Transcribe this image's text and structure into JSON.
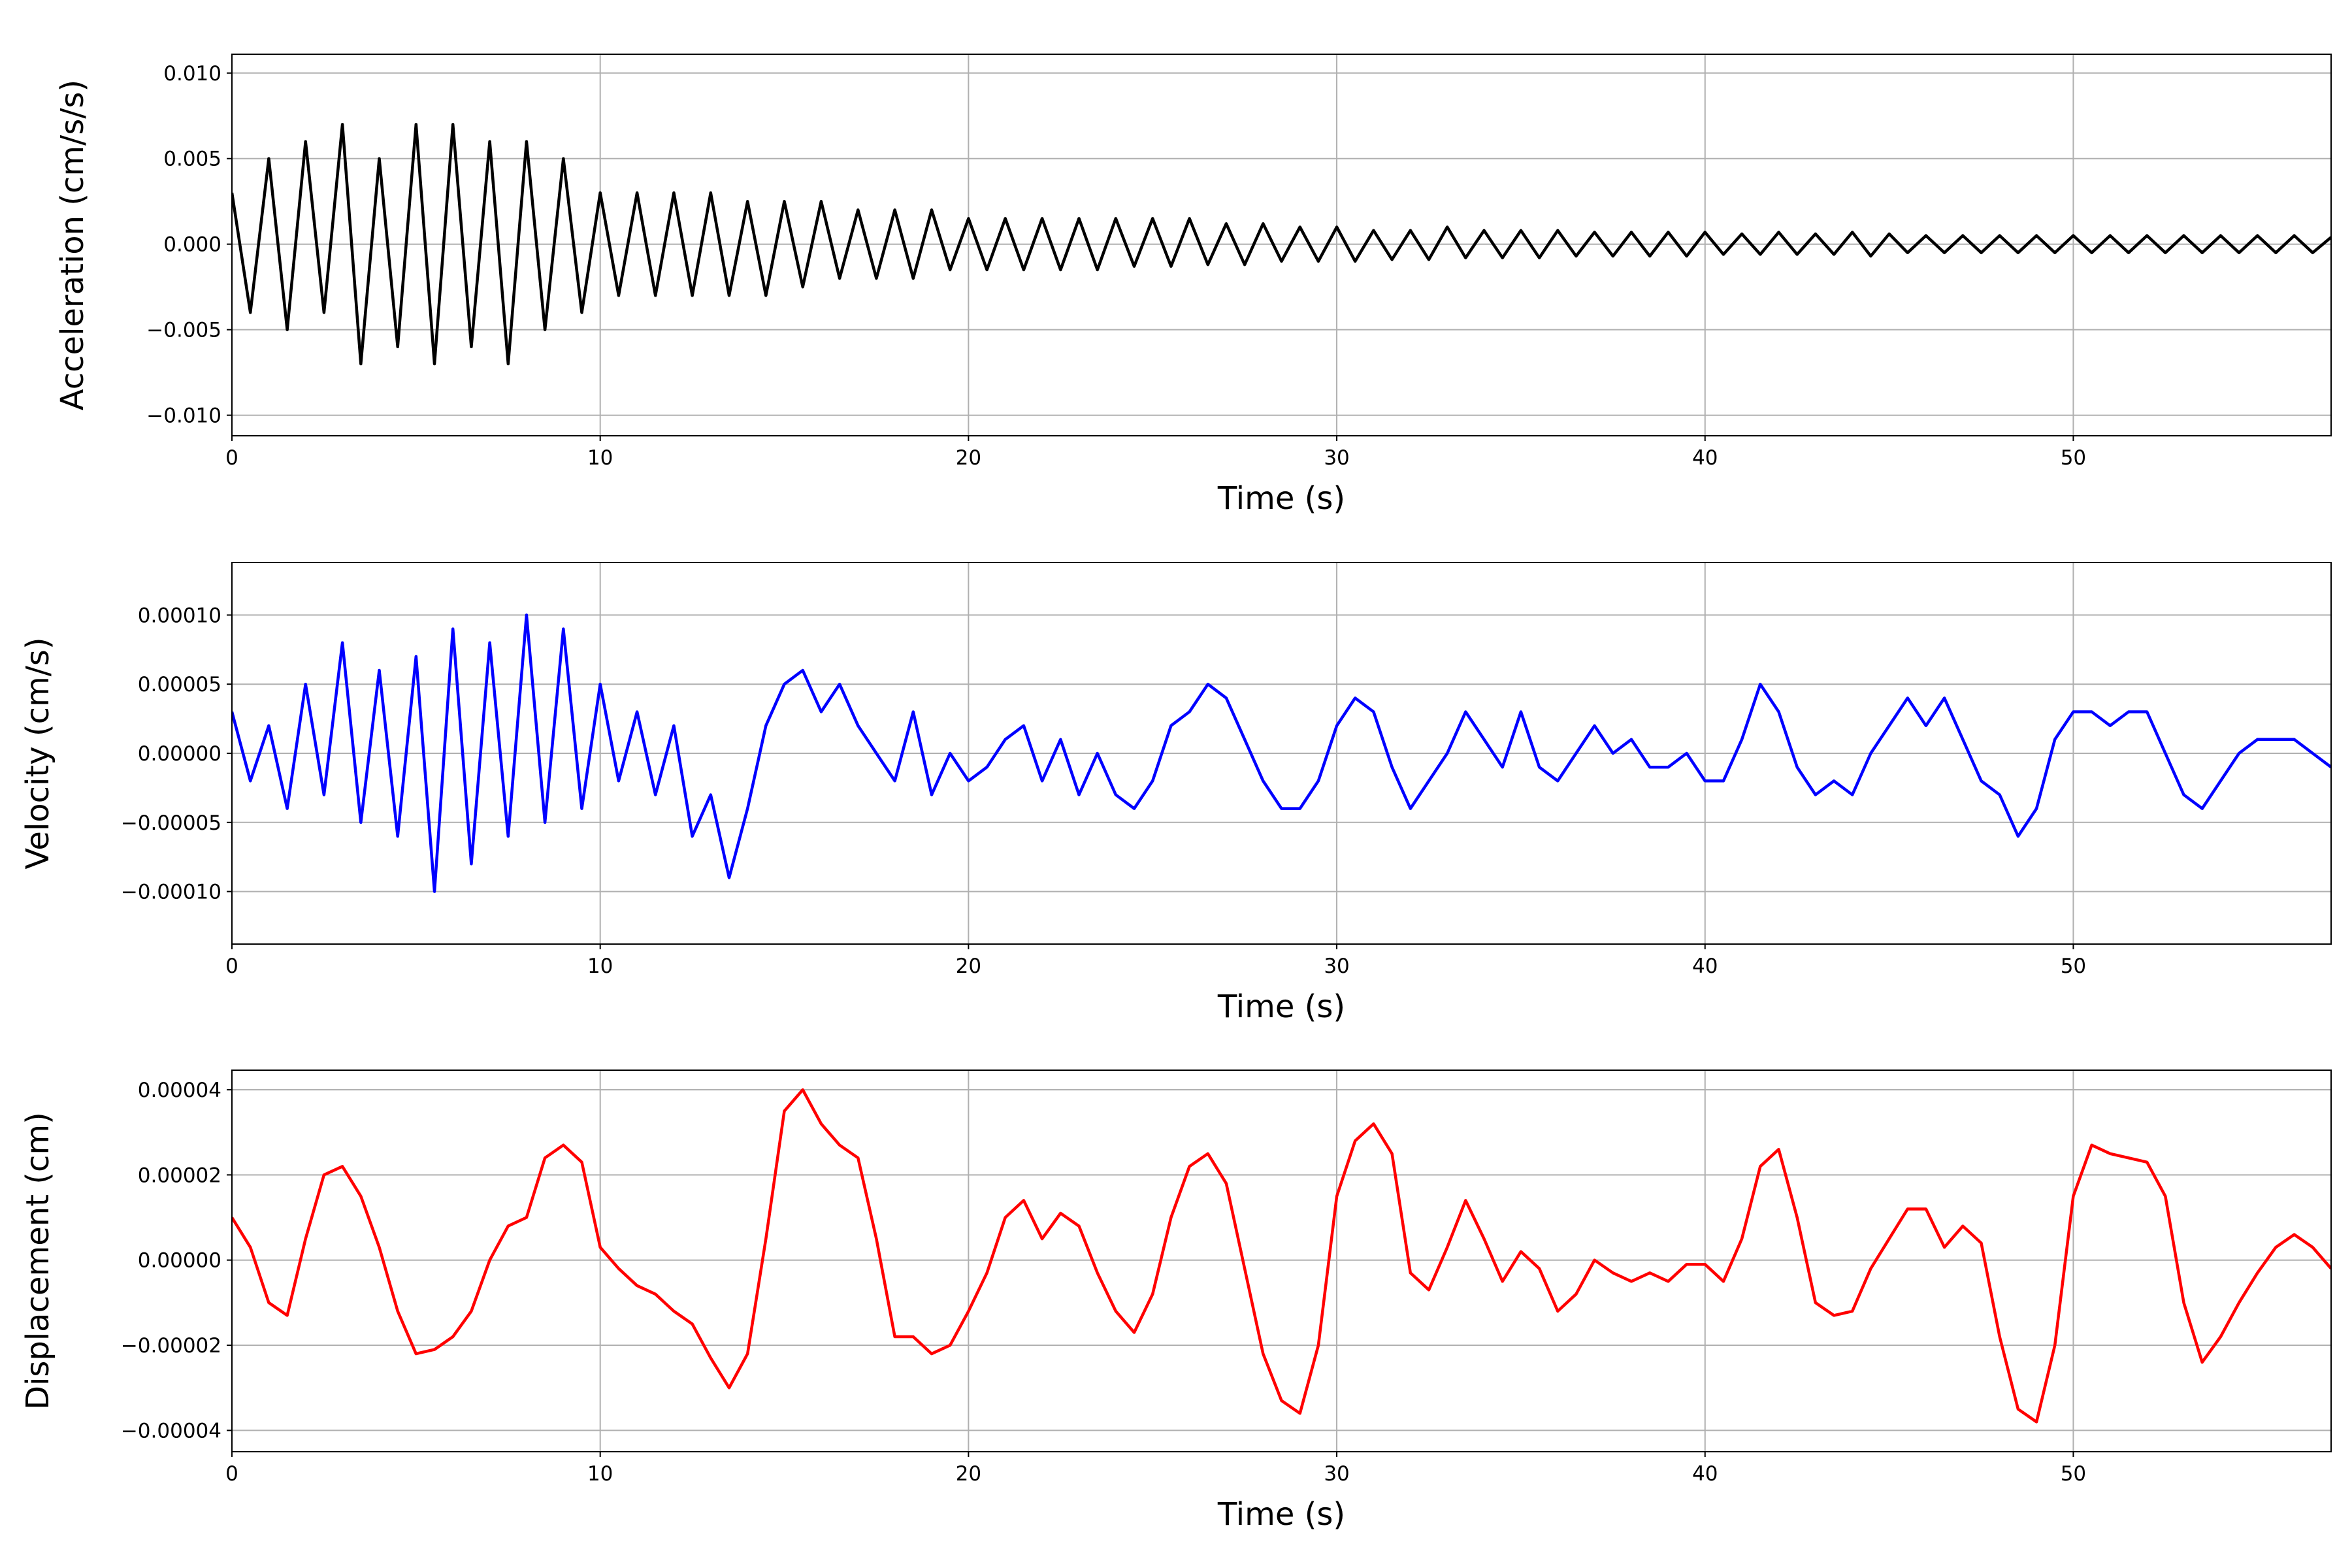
{
  "chart_data": [
    {
      "type": "line",
      "xlabel": "Time (s)",
      "ylabel": "Acceleration (cm/s/s)",
      "color": "#000000",
      "grid": true,
      "xlim": [
        0,
        57
      ],
      "xticks": [
        0,
        10,
        20,
        30,
        40,
        50
      ],
      "ylim": [
        -0.0112,
        0.0111
      ],
      "yticks": [
        {
          "value": -0.01,
          "label": "−0.010"
        },
        {
          "value": -0.005,
          "label": "−0.005"
        },
        {
          "value": 0,
          "label": "0.000"
        },
        {
          "value": 0.005,
          "label": "0.005"
        },
        {
          "value": 0.01,
          "label": "0.010"
        }
      ],
      "x": [
        0,
        0.5,
        1,
        1.5,
        2,
        2.5,
        3,
        3.5,
        4,
        4.5,
        5,
        5.5,
        6,
        6.5,
        7,
        7.5,
        8,
        8.5,
        9,
        9.5,
        10,
        10.5,
        11,
        11.5,
        12,
        12.5,
        13,
        13.5,
        14,
        14.5,
        15,
        15.5,
        16,
        16.5,
        17,
        17.5,
        18,
        18.5,
        19,
        19.5,
        20,
        20.5,
        21,
        21.5,
        22,
        22.5,
        23,
        23.5,
        24,
        24.5,
        25,
        25.5,
        26,
        26.5,
        27,
        27.5,
        28,
        28.5,
        29,
        29.5,
        30,
        30.5,
        31,
        31.5,
        32,
        32.5,
        33,
        33.5,
        34,
        34.5,
        35,
        35.5,
        36,
        36.5,
        37,
        37.5,
        38,
        38.5,
        39,
        39.5,
        40,
        40.5,
        41,
        41.5,
        42,
        42.5,
        43,
        43.5,
        44,
        44.5,
        45,
        45.5,
        46,
        46.5,
        47,
        47.5,
        48,
        48.5,
        49,
        49.5,
        50,
        50.5,
        51,
        51.5,
        52,
        52.5,
        53,
        53.5,
        54,
        54.5,
        55,
        55.5,
        56,
        56.5,
        57
      ],
      "values": [
        0.003,
        -0.004,
        0.005,
        -0.005,
        0.006,
        -0.004,
        0.007,
        -0.007,
        0.005,
        -0.006,
        0.007,
        -0.007,
        0.007,
        -0.006,
        0.006,
        -0.007,
        0.006,
        -0.005,
        0.005,
        -0.004,
        0.003,
        -0.003,
        0.003,
        -0.003,
        0.003,
        -0.003,
        0.003,
        -0.003,
        0.0025,
        -0.003,
        0.0025,
        -0.0025,
        0.0025,
        -0.002,
        0.002,
        -0.002,
        0.002,
        -0.002,
        0.002,
        -0.0015,
        0.0015,
        -0.0015,
        0.0015,
        -0.0015,
        0.0015,
        -0.0015,
        0.0015,
        -0.0015,
        0.0015,
        -0.0013,
        0.0015,
        -0.0013,
        0.0015,
        -0.0012,
        0.0012,
        -0.0012,
        0.0012,
        -0.001,
        0.001,
        -0.001,
        0.001,
        -0.001,
        0.0008,
        -0.0009,
        0.0008,
        -0.0009,
        0.001,
        -0.0008,
        0.0008,
        -0.0008,
        0.0008,
        -0.0008,
        0.0008,
        -0.0007,
        0.0007,
        -0.0007,
        0.0007,
        -0.0007,
        0.0007,
        -0.0007,
        0.0007,
        -0.0006,
        0.0006,
        -0.0006,
        0.0007,
        -0.0006,
        0.0006,
        -0.0006,
        0.0007,
        -0.0007,
        0.0006,
        -0.0005,
        0.0005,
        -0.0005,
        0.0005,
        -0.0005,
        0.0005,
        -0.0005,
        0.0005,
        -0.0005,
        0.0005,
        -0.0005,
        0.0005,
        -0.0005,
        0.0005,
        -0.0005,
        0.0005,
        -0.0005,
        0.0005,
        -0.0005,
        0.0005,
        -0.0005,
        0.0005,
        -0.0005,
        0.0004
      ]
    },
    {
      "type": "line",
      "xlabel": "Time (s)",
      "ylabel": "Velocity (cm/s)",
      "color": "#0000ff",
      "grid": true,
      "xlim": [
        0,
        57
      ],
      "xticks": [
        0,
        10,
        20,
        30,
        40,
        50
      ],
      "ylim": [
        -0.000138,
        0.000138
      ],
      "yticks": [
        {
          "value": -0.0001,
          "label": "−0.00010"
        },
        {
          "value": -5e-05,
          "label": "−0.00005"
        },
        {
          "value": 0,
          "label": "0.00000"
        },
        {
          "value": 5e-05,
          "label": "0.00005"
        },
        {
          "value": 0.0001,
          "label": "0.00010"
        }
      ],
      "x": [
        0,
        0.5,
        1,
        1.5,
        2,
        2.5,
        3,
        3.5,
        4,
        4.5,
        5,
        5.5,
        6,
        6.5,
        7,
        7.5,
        8,
        8.5,
        9,
        9.5,
        10,
        10.5,
        11,
        11.5,
        12,
        12.5,
        13,
        13.5,
        14,
        14.5,
        15,
        15.5,
        16,
        16.5,
        17,
        17.5,
        18,
        18.5,
        19,
        19.5,
        20,
        20.5,
        21,
        21.5,
        22,
        22.5,
        23,
        23.5,
        24,
        24.5,
        25,
        25.5,
        26,
        26.5,
        27,
        27.5,
        28,
        28.5,
        29,
        29.5,
        30,
        30.5,
        31,
        31.5,
        32,
        32.5,
        33,
        33.5,
        34,
        34.5,
        35,
        35.5,
        36,
        36.5,
        37,
        37.5,
        38,
        38.5,
        39,
        39.5,
        40,
        40.5,
        41,
        41.5,
        42,
        42.5,
        43,
        43.5,
        44,
        44.5,
        45,
        45.5,
        46,
        46.5,
        47,
        47.5,
        48,
        48.5,
        49,
        49.5,
        50,
        50.5,
        51,
        51.5,
        52,
        52.5,
        53,
        53.5,
        54,
        54.5,
        55,
        55.5,
        56,
        56.5,
        57
      ],
      "values": [
        3e-05,
        -2e-05,
        2e-05,
        -4e-05,
        5e-05,
        -3e-05,
        8e-05,
        -5e-05,
        6e-05,
        -6e-05,
        7e-05,
        -0.0001,
        9e-05,
        -8e-05,
        8e-05,
        -6e-05,
        0.0001,
        -5e-05,
        9e-05,
        -4e-05,
        5e-05,
        -2e-05,
        3e-05,
        -3e-05,
        2e-05,
        -6e-05,
        -3e-05,
        -9e-05,
        -4e-05,
        2e-05,
        5e-05,
        6e-05,
        3e-05,
        5e-05,
        2e-05,
        0,
        -2e-05,
        3e-05,
        -3e-05,
        0,
        -2e-05,
        -1e-05,
        1e-05,
        2e-05,
        -2e-05,
        1e-05,
        -3e-05,
        0,
        -3e-05,
        -4e-05,
        -2e-05,
        2e-05,
        3e-05,
        5e-05,
        4e-05,
        1e-05,
        -2e-05,
        -4e-05,
        -4e-05,
        -2e-05,
        2e-05,
        4e-05,
        3e-05,
        -1e-05,
        -4e-05,
        -2e-05,
        0,
        3e-05,
        1e-05,
        -1e-05,
        3e-05,
        -1e-05,
        -2e-05,
        0,
        2e-05,
        0,
        1e-05,
        -1e-05,
        -1e-05,
        0,
        -2e-05,
        -2e-05,
        1e-05,
        5e-05,
        3e-05,
        -1e-05,
        -3e-05,
        -2e-05,
        -3e-05,
        0,
        2e-05,
        4e-05,
        2e-05,
        4e-05,
        1e-05,
        -2e-05,
        -3e-05,
        -6e-05,
        -4e-05,
        1e-05,
        3e-05,
        3e-05,
        2e-05,
        3e-05,
        3e-05,
        0,
        -3e-05,
        -4e-05,
        -2e-05,
        0,
        1e-05,
        1e-05,
        1e-05,
        0,
        -1e-05
      ]
    },
    {
      "type": "line",
      "xlabel": "Time (s)",
      "ylabel": "Displacement (cm)",
      "color": "#ff0000",
      "grid": true,
      "xlim": [
        0,
        57
      ],
      "xticks": [
        0,
        10,
        20,
        30,
        40,
        50
      ],
      "ylim": [
        -4.5e-05,
        4.46e-05
      ],
      "yticks": [
        {
          "value": -4e-05,
          "label": "−0.00004"
        },
        {
          "value": -2e-05,
          "label": "−0.00002"
        },
        {
          "value": 0,
          "label": "0.00000"
        },
        {
          "value": 2e-05,
          "label": "0.00002"
        },
        {
          "value": 4e-05,
          "label": "0.00004"
        }
      ],
      "x": [
        0,
        0.5,
        1,
        1.5,
        2,
        2.5,
        3,
        3.5,
        4,
        4.5,
        5,
        5.5,
        6,
        6.5,
        7,
        7.5,
        8,
        8.5,
        9,
        9.5,
        10,
        10.5,
        11,
        11.5,
        12,
        12.5,
        13,
        13.5,
        14,
        14.5,
        15,
        15.5,
        16,
        16.5,
        17,
        17.5,
        18,
        18.5,
        19,
        19.5,
        20,
        20.5,
        21,
        21.5,
        22,
        22.5,
        23,
        23.5,
        24,
        24.5,
        25,
        25.5,
        26,
        26.5,
        27,
        27.5,
        28,
        28.5,
        29,
        29.5,
        30,
        30.5,
        31,
        31.5,
        32,
        32.5,
        33,
        33.5,
        34,
        34.5,
        35,
        35.5,
        36,
        36.5,
        37,
        37.5,
        38,
        38.5,
        39,
        39.5,
        40,
        40.5,
        41,
        41.5,
        42,
        42.5,
        43,
        43.5,
        44,
        44.5,
        45,
        45.5,
        46,
        46.5,
        47,
        47.5,
        48,
        48.5,
        49,
        49.5,
        50,
        50.5,
        51,
        51.5,
        52,
        52.5,
        53,
        53.5,
        54,
        54.5,
        55,
        55.5,
        56,
        56.5,
        57
      ],
      "values": [
        1e-05,
        3e-06,
        -1e-05,
        -1.3e-05,
        5e-06,
        2e-05,
        2.2e-05,
        1.5e-05,
        3e-06,
        -1.2e-05,
        -2.2e-05,
        -2.1e-05,
        -1.8e-05,
        -1.2e-05,
        0,
        8e-06,
        1e-05,
        2.4e-05,
        2.7e-05,
        2.3e-05,
        3e-06,
        -2e-06,
        -6e-06,
        -8e-06,
        -1.2e-05,
        -1.5e-05,
        -2.3e-05,
        -3e-05,
        -2.2e-05,
        5e-06,
        3.5e-05,
        4e-05,
        3.2e-05,
        2.7e-05,
        2.4e-05,
        5e-06,
        -1.8e-05,
        -1.8e-05,
        -2.2e-05,
        -2e-05,
        -1.2e-05,
        -3e-06,
        1e-05,
        1.4e-05,
        5e-06,
        1.1e-05,
        8e-06,
        -3e-06,
        -1.2e-05,
        -1.7e-05,
        -8e-06,
        1e-05,
        2.2e-05,
        2.5e-05,
        1.8e-05,
        -2e-06,
        -2.2e-05,
        -3.3e-05,
        -3.6e-05,
        -2e-05,
        1.5e-05,
        2.8e-05,
        3.2e-05,
        2.5e-05,
        -3e-06,
        -7e-06,
        3e-06,
        1.4e-05,
        5e-06,
        -5e-06,
        2e-06,
        -2e-06,
        -1.2e-05,
        -8e-06,
        0,
        -3e-06,
        -5e-06,
        -3e-06,
        -5e-06,
        -1e-06,
        -1e-06,
        -5e-06,
        5e-06,
        2.2e-05,
        2.6e-05,
        1e-05,
        -1e-05,
        -1.3e-05,
        -1.2e-05,
        -2e-06,
        5e-06,
        1.2e-05,
        1.2e-05,
        3e-06,
        8e-06,
        4e-06,
        -1.8e-05,
        -3.5e-05,
        -3.8e-05,
        -2e-05,
        1.5e-05,
        2.7e-05,
        2.5e-05,
        2.4e-05,
        2.3e-05,
        1.5e-05,
        -1e-05,
        -2.4e-05,
        -1.8e-05,
        -1e-05,
        -3e-06,
        3e-06,
        6e-06,
        3e-06,
        -2e-06
      ]
    }
  ]
}
